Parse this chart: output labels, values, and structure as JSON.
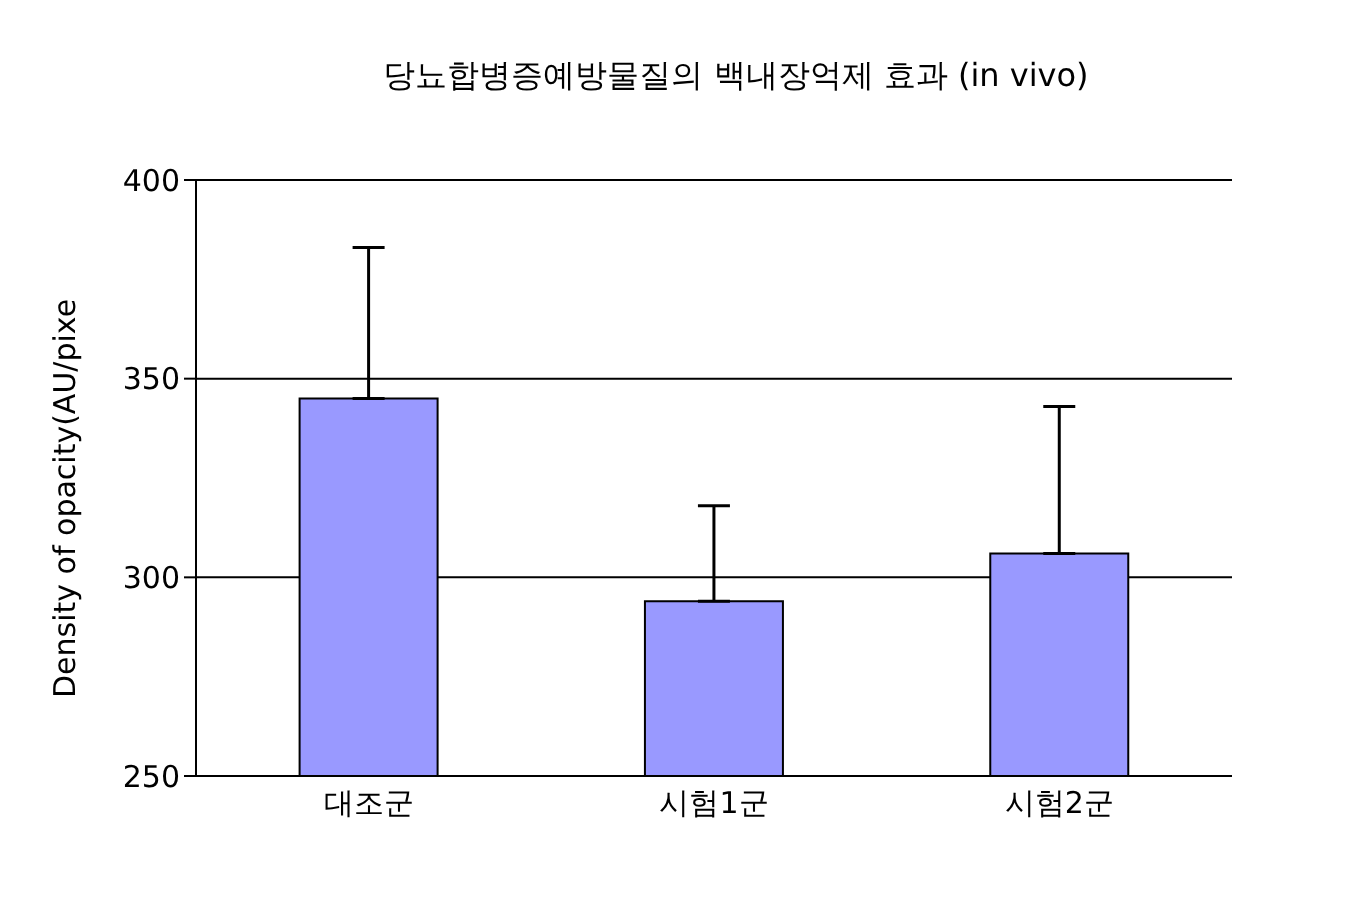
{
  "chart_data": {
    "type": "bar",
    "title": "당뇨합병증예방물질의 백내장억제 효과 (in vivo)",
    "ylabel": "Density of opacity(AU/pixe",
    "categories": [
      "대조군",
      "시험1군",
      "시험2군"
    ],
    "values": [
      345,
      294,
      306
    ],
    "errors": [
      [
        345,
        383
      ],
      [
        294,
        318
      ],
      [
        306,
        343
      ]
    ],
    "color": "#9999ff",
    "ylim": [
      250,
      400
    ],
    "yticks": [
      250,
      300,
      350,
      400
    ],
    "grid": "y"
  }
}
